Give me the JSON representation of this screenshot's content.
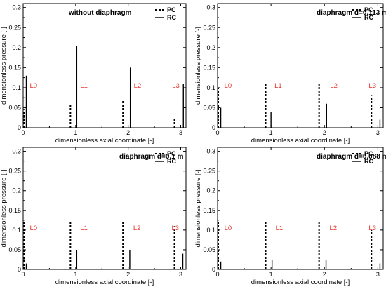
{
  "chart_data": [
    {
      "type": "bar",
      "title": "without diaphragm",
      "xlabel": "dimensionless axial coordinate [-]",
      "ylabel": "dimensionless pressure [-]",
      "xlim": [
        0,
        3.1
      ],
      "ylim": [
        0,
        0.31
      ],
      "xticks": [
        "0",
        "1",
        "2",
        "3"
      ],
      "yticks": [
        "0",
        "0.05",
        "0.1",
        "0.15",
        "0.2",
        "0.25",
        "0.3"
      ],
      "legend": [
        "PC",
        "RC"
      ],
      "legend_position": "top-right",
      "locations": [
        "L0",
        "L1",
        "L2",
        "L3"
      ],
      "series": [
        {
          "name": "PC",
          "x": [
            0,
            0.9,
            1.9,
            2.88
          ],
          "values": [
            0.045,
            0.06,
            0.07,
            0.025
          ]
        },
        {
          "name": "RC",
          "x": [
            0.06,
            1.02,
            2.04,
            3.05
          ],
          "values": [
            0.13,
            0.205,
            0.15,
            0.11
          ]
        }
      ]
    },
    {
      "type": "bar",
      "title": "diaphragm d=0.113 m",
      "xlabel": "dimensionless axial coordinate [-]",
      "ylabel": "dimensionless pressure [-]",
      "xlim": [
        0,
        3.1
      ],
      "ylim": [
        0,
        0.31
      ],
      "xticks": [
        "0",
        "1",
        "2",
        "3"
      ],
      "yticks": [
        "0",
        "0.05",
        "0.1",
        "0.15",
        "0.2",
        "0.25",
        "0.3"
      ],
      "legend": [
        "PC",
        "RC"
      ],
      "legend_position": "top-right",
      "locations": [
        "L0",
        "L1",
        "L2",
        "L3"
      ],
      "series": [
        {
          "name": "PC",
          "x": [
            0,
            0.9,
            1.9,
            2.88
          ],
          "values": [
            0.1,
            0.11,
            0.11,
            0.08
          ]
        },
        {
          "name": "RC",
          "x": [
            0.06,
            1.0,
            2.04,
            3.04
          ],
          "values": [
            0.05,
            0.04,
            0.06,
            0.02
          ]
        }
      ]
    },
    {
      "type": "bar",
      "title": "diaphragm d=0.1 m",
      "xlabel": "dimensionless axial coordinate [-]",
      "ylabel": "dimensionless pressure [-]",
      "xlim": [
        0,
        3.1
      ],
      "ylim": [
        0,
        0.31
      ],
      "xticks": [
        "0",
        "1",
        "2",
        "3"
      ],
      "yticks": [
        "0",
        "0.05",
        "0.1",
        "0.15",
        "0.2",
        "0.25",
        "0.3"
      ],
      "legend": [
        "PC",
        "RC"
      ],
      "legend_position": "top-right",
      "locations": [
        "L0",
        "L1",
        "L2",
        "L3"
      ],
      "series": [
        {
          "name": "PC",
          "x": [
            0,
            0.9,
            1.9,
            2.88
          ],
          "values": [
            0.12,
            0.12,
            0.12,
            0.11
          ]
        },
        {
          "name": "RC",
          "x": [
            0.06,
            1.02,
            2.03,
            3.04
          ],
          "values": [
            0.015,
            0.05,
            0.05,
            0.04
          ]
        }
      ]
    },
    {
      "type": "bar",
      "title": "diaphragm d=0.088 m",
      "xlabel": "dimensionless axial coordinate [-]",
      "ylabel": "dimensionless pressure [-]",
      "xlim": [
        0,
        3.1
      ],
      "ylim": [
        0,
        0.31
      ],
      "xticks": [
        "0",
        "1",
        "2",
        "3"
      ],
      "yticks": [
        "0",
        "0.05",
        "0.1",
        "0.15",
        "0.2",
        "0.25",
        "0.3"
      ],
      "legend": [
        "PC",
        "RC"
      ],
      "legend_position": "top-right",
      "locations": [
        "L0",
        "L1",
        "L2",
        "L3"
      ],
      "series": [
        {
          "name": "PC",
          "x": [
            0,
            0.9,
            1.9,
            2.88
          ],
          "values": [
            0.12,
            0.12,
            0.12,
            0.1
          ]
        },
        {
          "name": "RC",
          "x": [
            0.06,
            1.02,
            2.03,
            3.04
          ],
          "values": [
            0.02,
            0.025,
            0.025,
            0.015
          ]
        }
      ]
    }
  ]
}
